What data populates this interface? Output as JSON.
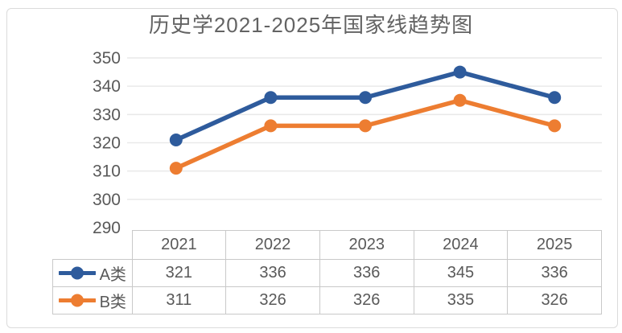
{
  "title": "历史学2021-2025年国家线趋势图",
  "colors": {
    "series_a": "#2e5b9c",
    "series_b": "#ed7d31",
    "grid": "#e9e9e9",
    "text": "#595959",
    "title_text": "#636363",
    "table_border": "#c9c9c9",
    "frame_border": "#dbdbdb",
    "background": "#ffffff"
  },
  "chart_data": {
    "type": "line",
    "title": "历史学2021-2025年国家线趋势图",
    "categories": [
      "2021",
      "2022",
      "2023",
      "2024",
      "2025"
    ],
    "series": [
      {
        "name": "A类",
        "color": "#2e5b9c",
        "values": [
          321,
          336,
          336,
          345,
          336
        ]
      },
      {
        "name": "B类",
        "color": "#ed7d31",
        "values": [
          311,
          326,
          326,
          335,
          326
        ]
      }
    ],
    "xlabel": "",
    "ylabel": "",
    "ylim": [
      290,
      350
    ],
    "yticks": [
      350,
      340,
      330,
      320,
      310,
      300,
      290
    ],
    "grid": true,
    "marker": "circle",
    "legend_position": "data-table-left",
    "data_table_shown": true
  }
}
